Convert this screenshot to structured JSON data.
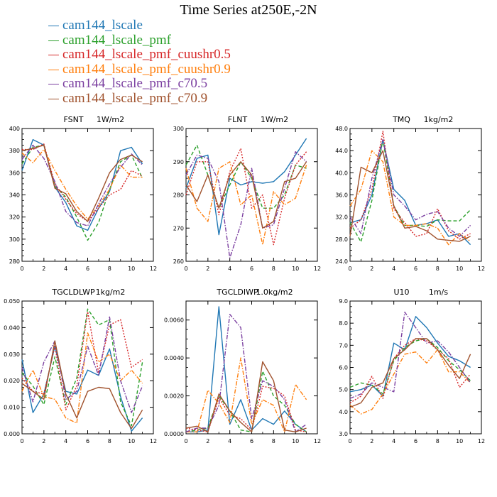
{
  "title": "Time Series at250E,-2N",
  "legend": [
    {
      "label": "cam144_lscale",
      "color": "#1f77b4",
      "dash": "solid"
    },
    {
      "label": "cam144_lscale_pmf",
      "color": "#2ca02c",
      "dash": "dashed"
    },
    {
      "label": "cam144_lscale_pmf_cuushr0.5",
      "color": "#d62728",
      "dash": "dotted"
    },
    {
      "label": "cam144_lscale_pmf_cuushr0.9",
      "color": "#ff7f0e",
      "dash": "dashdot"
    },
    {
      "label": "cam144_lscale_pmf_c70.5",
      "color": "#7b3fa0",
      "dash": "dashdot"
    },
    {
      "label": "cam144_lscale_pmf_c70.9",
      "color": "#a0522d",
      "dash": "solid"
    }
  ],
  "chart_data": [
    {
      "type": "line",
      "title": "FSNT",
      "units": "1W/m2",
      "x": [
        0,
        1,
        2,
        3,
        4,
        5,
        6,
        7,
        8,
        9,
        10,
        11
      ],
      "xlim": [
        0,
        12
      ],
      "xticks": [
        0,
        2,
        4,
        6,
        8,
        10,
        12
      ],
      "xtick_labels": [
        "0",
        "2",
        "4",
        "6",
        "8",
        "10",
        "12"
      ],
      "ylim": [
        280,
        400
      ],
      "yticks": [
        280,
        300,
        320,
        340,
        360,
        380,
        400
      ],
      "ytick_labels": [
        "280",
        "300",
        "320",
        "340",
        "360",
        "380",
        "400"
      ],
      "series": [
        {
          "name": "cam144_lscale",
          "values": [
            362,
            390,
            385,
            347,
            333,
            312,
            308,
            328,
            343,
            380,
            383,
            368
          ]
        },
        {
          "name": "cam144_lscale_pmf",
          "values": [
            368,
            383,
            385,
            348,
            338,
            320,
            299,
            315,
            345,
            370,
            376,
            355
          ]
        },
        {
          "name": "cam144_lscale_pmf_cuushr0.5",
          "values": [
            381,
            381,
            386,
            350,
            336,
            323,
            316,
            328,
            340,
            345,
            362,
            357
          ]
        },
        {
          "name": "cam144_lscale_pmf_cuushr0.9",
          "values": [
            378,
            369,
            381,
            362,
            345,
            330,
            318,
            330,
            345,
            367,
            356,
            356
          ]
        },
        {
          "name": "cam144_lscale_pmf_c70.5",
          "values": [
            372,
            385,
            373,
            352,
            325,
            315,
            312,
            332,
            350,
            365,
            377,
            367
          ]
        },
        {
          "name": "cam144_lscale_pmf_c70.9",
          "values": [
            380,
            382,
            385,
            346,
            341,
            325,
            316,
            337,
            360,
            372,
            376,
            370
          ]
        }
      ]
    },
    {
      "type": "line",
      "title": "FLNT",
      "units": "1W/m2",
      "x": [
        0,
        1,
        2,
        3,
        4,
        5,
        6,
        7,
        8,
        9,
        10,
        11
      ],
      "xlim": [
        0,
        12
      ],
      "xticks": [
        0,
        2,
        4,
        6,
        8,
        10,
        12
      ],
      "xtick_labels": [
        "0",
        "2",
        "4",
        "6",
        "8",
        "10",
        "12"
      ],
      "ylim": [
        260,
        300
      ],
      "yticks": [
        260,
        270,
        280,
        290,
        300
      ],
      "ytick_labels": [
        "260",
        "270",
        "280",
        "290",
        "300"
      ],
      "series": [
        {
          "name": "cam144_lscale",
          "values": [
            282,
            291,
            292,
            268,
            285,
            283,
            284,
            283.5,
            284,
            287,
            292,
            297
          ]
        },
        {
          "name": "cam144_lscale_pmf",
          "values": [
            289,
            295,
            286,
            276,
            283,
            290,
            285,
            276,
            276,
            280,
            289,
            288
          ]
        },
        {
          "name": "cam144_lscale_pmf_cuushr0.5",
          "values": [
            280,
            290,
            290,
            274,
            287,
            294,
            276,
            280,
            265,
            279,
            289,
            293
          ]
        },
        {
          "name": "cam144_lscale_pmf_cuushr0.9",
          "values": [
            288,
            276,
            272,
            288,
            290,
            277,
            280,
            265,
            281,
            277,
            279,
            289
          ]
        },
        {
          "name": "cam144_lscale_pmf_c70.5",
          "values": [
            286,
            292,
            291,
            284,
            261,
            271,
            288,
            270,
            271,
            282,
            293,
            290
          ]
        },
        {
          "name": "cam144_lscale_pmf_c70.9",
          "values": [
            283,
            278,
            286,
            276,
            286,
            290,
            286,
            270,
            272,
            284,
            285,
            290
          ]
        }
      ]
    },
    {
      "type": "line",
      "title": "TMQ",
      "units": "1kg/m2",
      "x": [
        0,
        1,
        2,
        3,
        4,
        5,
        6,
        7,
        8,
        9,
        10,
        11
      ],
      "xlim": [
        0,
        12
      ],
      "xticks": [
        0,
        2,
        4,
        6,
        8,
        10,
        12
      ],
      "xtick_labels": [
        "0",
        "2",
        "4",
        "6",
        "8",
        "10",
        "12"
      ],
      "ylim": [
        24,
        48
      ],
      "yticks": [
        24,
        28,
        32,
        36,
        40,
        44,
        48
      ],
      "ytick_labels": [
        "24.0",
        "28.0",
        "32.0",
        "36.0",
        "40.0",
        "44.0",
        "48.0"
      ],
      "series": [
        {
          "name": "cam144_lscale",
          "values": [
            31,
            31.5,
            36,
            46,
            37,
            35,
            30.5,
            30.8,
            31.5,
            28.5,
            29,
            27
          ]
        },
        {
          "name": "cam144_lscale_pmf",
          "values": [
            31,
            27.5,
            35,
            46,
            34,
            30.5,
            30.5,
            30.3,
            31.5,
            31.3,
            31.3,
            33.3
          ]
        },
        {
          "name": "cam144_lscale_pmf_cuushr0.5",
          "values": [
            30,
            31.5,
            37,
            47.5,
            33.5,
            31,
            28.5,
            29,
            33.5,
            29.5,
            28,
            29
          ]
        },
        {
          "name": "cam144_lscale_pmf_cuushr0.9",
          "values": [
            34,
            37,
            44,
            42,
            32,
            30.5,
            30.5,
            30.8,
            30,
            27,
            29,
            27.6
          ]
        },
        {
          "name": "cam144_lscale_pmf_c70.5",
          "values": [
            32,
            29,
            39,
            46,
            36,
            34,
            31.5,
            32.5,
            33,
            30,
            28.5,
            30.5
          ]
        },
        {
          "name": "cam144_lscale_pmf_c70.9",
          "values": [
            28.5,
            41,
            40,
            44,
            34,
            30,
            30.3,
            29.5,
            28,
            27.8,
            27.6,
            28.5
          ]
        }
      ]
    },
    {
      "type": "line",
      "title": "TGCLDLWP",
      "units": "1kg/m2",
      "x": [
        0,
        1,
        2,
        3,
        4,
        5,
        6,
        7,
        8,
        9,
        10,
        11
      ],
      "xlim": [
        0,
        12
      ],
      "xticks": [
        0,
        2,
        4,
        6,
        8,
        10,
        12
      ],
      "xtick_labels": [
        "0",
        "2",
        "4",
        "6",
        "8",
        "10",
        "12"
      ],
      "ylim": [
        0,
        0.05
      ],
      "yticks": [
        0,
        0.01,
        0.02,
        0.03,
        0.04,
        0.05
      ],
      "ytick_labels": [
        "0.000",
        "0.010",
        "0.020",
        "0.030",
        "0.040",
        "0.050"
      ],
      "series": [
        {
          "name": "cam144_lscale",
          "values": [
            0.028,
            0.008,
            0.015,
            0.033,
            0.016,
            0.015,
            0.024,
            0.022,
            0.032,
            0.014,
            0.001,
            0.006
          ]
        },
        {
          "name": "cam144_lscale_pmf",
          "values": [
            0.023,
            0.018,
            0.011,
            0.029,
            0.011,
            0.021,
            0.047,
            0.041,
            0.043,
            0.012,
            0.003,
            0.027
          ]
        },
        {
          "name": "cam144_lscale_pmf_cuushr0.5",
          "values": [
            0.021,
            0.016,
            0.015,
            0.033,
            0.009,
            0.018,
            0.046,
            0.023,
            0.041,
            0.043,
            0.025,
            0.028
          ]
        },
        {
          "name": "cam144_lscale_pmf_cuushr0.9",
          "values": [
            0.016,
            0.024,
            0.014,
            0.013,
            0.006,
            0.004,
            0.038,
            0.027,
            0.03,
            0.02,
            0.024,
            0.019
          ]
        },
        {
          "name": "cam144_lscale_pmf_c70.5",
          "values": [
            0.025,
            0.012,
            0.027,
            0.035,
            0.013,
            0.016,
            0.033,
            0.022,
            0.044,
            0.02,
            0.008,
            0.018
          ]
        },
        {
          "name": "cam144_lscale_pmf_c70.9",
          "values": [
            0.019,
            0.016,
            0.013,
            0.035,
            0.015,
            0.006,
            0.016,
            0.0175,
            0.017,
            0.008,
            0.002,
            0.009
          ]
        }
      ]
    },
    {
      "type": "line",
      "title": "TGCLDIWP",
      "units": "1.0kg/m2",
      "x": [
        0,
        1,
        2,
        3,
        4,
        5,
        6,
        7,
        8,
        9,
        10,
        11
      ],
      "xlim": [
        0,
        12
      ],
      "xticks": [
        0,
        2,
        4,
        6,
        8,
        10,
        12
      ],
      "xtick_labels": [
        "0",
        "2",
        "4",
        "6",
        "8",
        "10",
        "12"
      ],
      "ylim": [
        0,
        0.007
      ],
      "yticks": [
        0,
        0.002,
        0.004,
        0.006
      ],
      "ytick_labels": [
        "0.0000",
        "0.0020",
        "0.0040",
        "0.0060"
      ],
      "series": [
        {
          "name": "cam144_lscale",
          "values": [
            0.0001,
            0.0001,
            0.0002,
            0.0067,
            0.0005,
            0.0018,
            0.0002,
            0.0008,
            0.0005,
            0.0012,
            0.0005,
            0.0001
          ]
        },
        {
          "name": "cam144_lscale_pmf",
          "values": [
            0.0001,
            0.0002,
            0.0003,
            0.002,
            0.0012,
            0.0002,
            0.0001,
            0.0033,
            0.002,
            0.0015,
            0.0005,
            0.0001
          ]
        },
        {
          "name": "cam144_lscale_pmf_cuushr0.5",
          "values": [
            0.0003,
            0.0002,
            0.0001,
            0.0019,
            0.001,
            0.0008,
            0.0002,
            0.0025,
            0.0024,
            0.002,
            0.0002,
            0.0001
          ]
        },
        {
          "name": "cam144_lscale_pmf_cuushr0.9",
          "values": [
            0.0001,
            0.0001,
            0.0023,
            0.0016,
            0.0006,
            0.004,
            0.0005,
            0.0018,
            0.0015,
            0.0001,
            0.0026,
            0.0018
          ]
        },
        {
          "name": "cam144_lscale_pmf_c70.5",
          "values": [
            0.0001,
            0.0003,
            0.0003,
            0.0015,
            0.0063,
            0.0056,
            0.0008,
            0.0028,
            0.0025,
            0.0018,
            0.0001,
            0.0005
          ]
        },
        {
          "name": "cam144_lscale_pmf_c70.9",
          "values": [
            0.0003,
            0.0004,
            0.0001,
            0.0021,
            0.0012,
            0.0006,
            0.0001,
            0.0038,
            0.0028,
            0.0002,
            0.0001,
            0.0003
          ]
        }
      ]
    },
    {
      "type": "line",
      "title": "U10",
      "units": "1m/s",
      "x": [
        0,
        1,
        2,
        3,
        4,
        5,
        6,
        7,
        8,
        9,
        10,
        11
      ],
      "xlim": [
        0,
        12
      ],
      "xticks": [
        0,
        2,
        4,
        6,
        8,
        10,
        12
      ],
      "xtick_labels": [
        "0",
        "2",
        "4",
        "6",
        "8",
        "10",
        "12"
      ],
      "ylim": [
        3,
        9
      ],
      "yticks": [
        3,
        4,
        5,
        6,
        7,
        8,
        9
      ],
      "ytick_labels": [
        "3.0",
        "4.0",
        "5.0",
        "6.0",
        "7.0",
        "8.0",
        "9.0"
      ],
      "series": [
        {
          "name": "cam144_lscale",
          "values": [
            4.9,
            5.0,
            5.2,
            4.7,
            7.1,
            6.8,
            8.3,
            7.8,
            7.1,
            6.5,
            6.3,
            6.0
          ]
        },
        {
          "name": "cam144_lscale_pmf",
          "values": [
            5.1,
            5.3,
            5.2,
            4.8,
            6.3,
            6.9,
            7.2,
            7.3,
            6.9,
            6.3,
            5.9,
            5.4
          ]
        },
        {
          "name": "cam144_lscale_pmf_cuushr0.5",
          "values": [
            4.4,
            4.7,
            5.6,
            4.6,
            6.4,
            7.0,
            7.3,
            7.2,
            6.8,
            6.4,
            5.1,
            5.7
          ]
        },
        {
          "name": "cam144_lscale_pmf_cuushr0.9",
          "values": [
            4.3,
            3.9,
            4.1,
            4.8,
            5.7,
            6.6,
            6.7,
            6.2,
            6.8,
            5.8,
            5.8,
            5.3
          ]
        },
        {
          "name": "cam144_lscale_pmf_c70.5",
          "values": [
            4.6,
            4.8,
            5.3,
            5.1,
            4.9,
            8.5,
            7.8,
            7.1,
            7.2,
            6.7,
            6.0,
            5.3
          ]
        },
        {
          "name": "cam144_lscale_pmf_c70.9",
          "values": [
            4.2,
            4.4,
            5.1,
            5.3,
            6.4,
            6.8,
            7.3,
            7.3,
            6.8,
            6.1,
            5.5,
            6.6
          ]
        }
      ]
    }
  ]
}
